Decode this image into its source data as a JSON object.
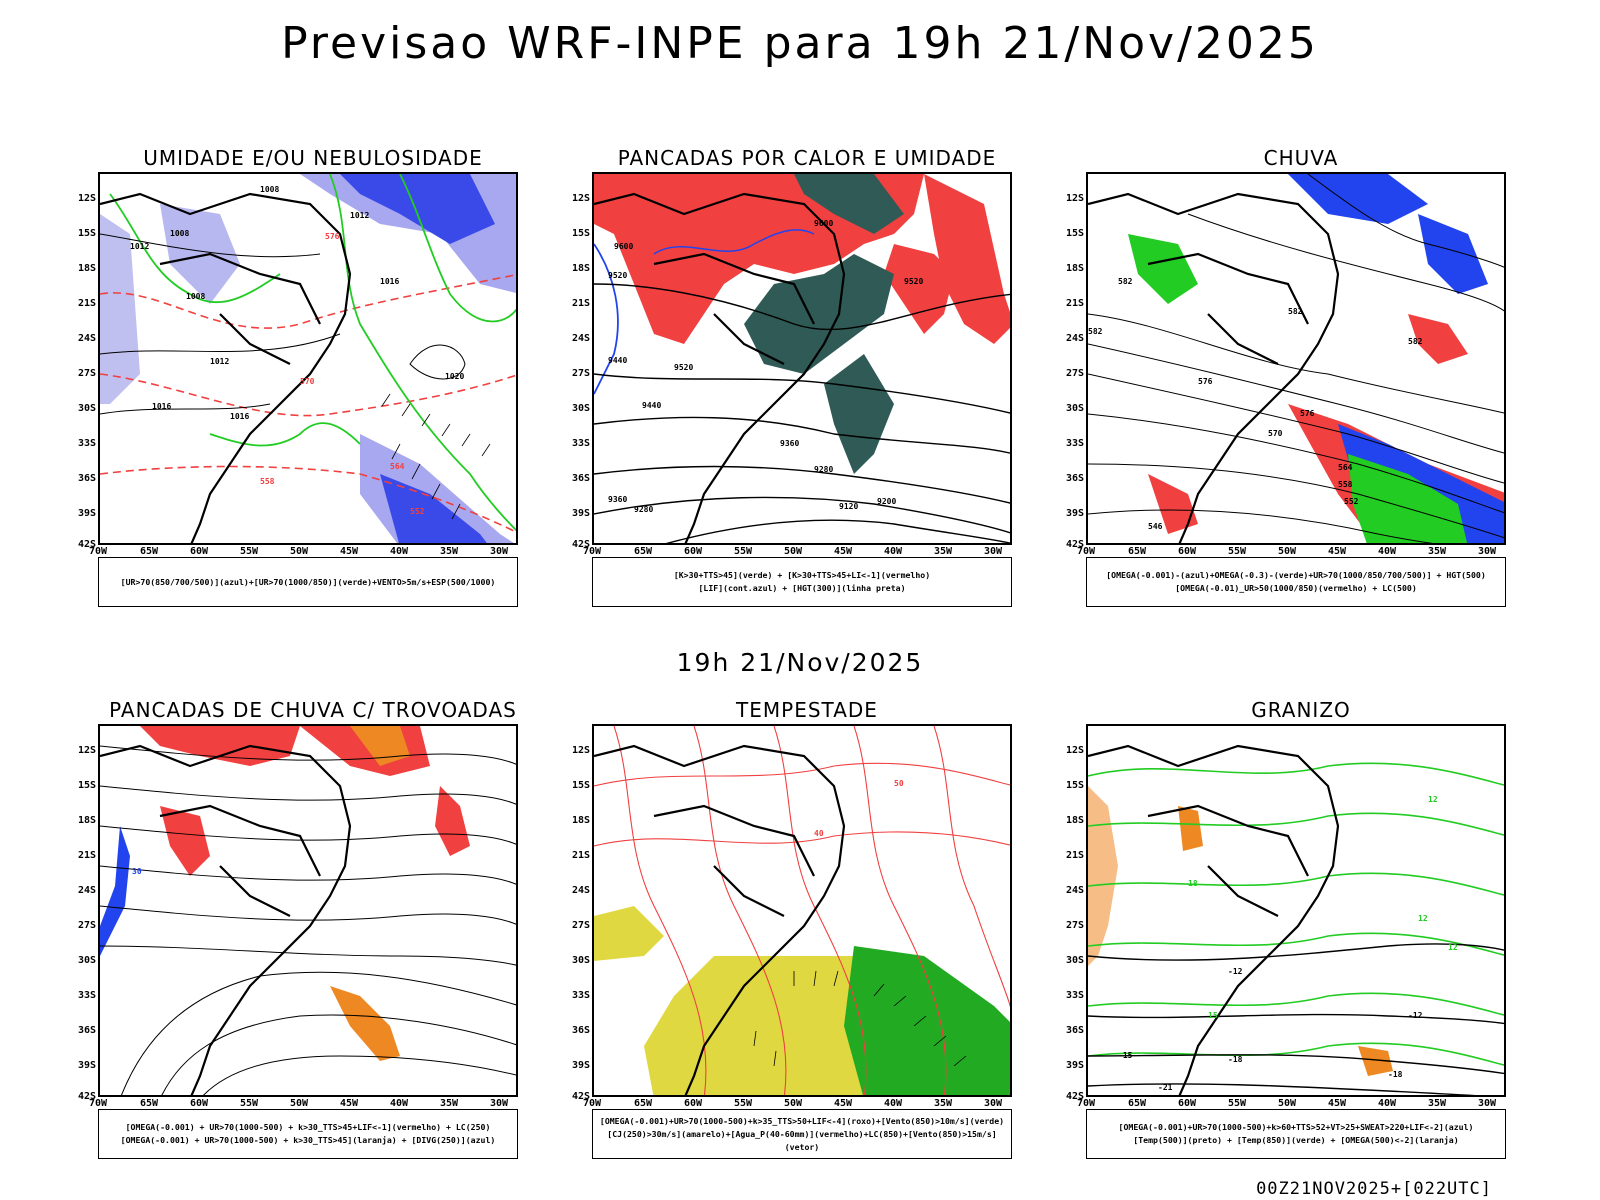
{
  "header": {
    "title": "Previsao WRF-INPE  para 19h 21/Nov/2025",
    "mid_title": "19h 21/Nov/2025",
    "footer": "00Z21NOV2025+[022UTC]"
  },
  "axes": {
    "lat_labels": [
      "12S",
      "15S",
      "18S",
      "21S",
      "24S",
      "27S",
      "30S",
      "33S",
      "36S",
      "39S",
      "42S"
    ],
    "lon_labels": [
      "70W",
      "65W",
      "60W",
      "55W",
      "50W",
      "45W",
      "40W",
      "35W",
      "30W"
    ]
  },
  "colors": {
    "red": "#f04040",
    "green": "#22cc22",
    "blue": "#2244ee",
    "lightblue": "#a8a8f0",
    "teal": "#2f5a55",
    "orange": "#ee8822",
    "yellow": "#e0d840",
    "black": "#000000"
  },
  "panels": [
    {
      "id": "umidade",
      "title": "UMIDADE E/OU NEBULOSIDADE",
      "legend": [
        "[UR>70(850/700/500)](azul)+[UR>70(1000/850)](verde)+VENTO>5m/s+ESP(500/1000)"
      ],
      "contour_labels": [
        "1008",
        "1008",
        "1012",
        "1012",
        "1008",
        "1012",
        "1016",
        "1016",
        "1020",
        "1016",
        "576",
        "570",
        "564",
        "558",
        "552"
      ]
    },
    {
      "id": "pancadas_calor",
      "title": "PANCADAS POR CALOR E UMIDADE",
      "legend": [
        "[K>30+TTS>45](verde) + [K>30+TTS>45+LI<-1](vermelho)",
        "[LIF](cont.azul) + [HGT(300)](linha preta)"
      ],
      "contour_labels": [
        "9600",
        "9600",
        "9520",
        "9440",
        "9520",
        "9440",
        "9360",
        "9280",
        "9200",
        "9120",
        "9360",
        "9280",
        "9520"
      ]
    },
    {
      "id": "chuva",
      "title": "CHUVA",
      "legend": [
        "[OMEGA(-0.001)-(azul)+OMEGA(-0.3)-(verde)+UR>70(1000/850/700/500)] + HGT(500)",
        "[OMEGA(-0.01)_UR>50(1000/850)(vermelho) + LC(500)"
      ],
      "contour_labels": [
        "582",
        "582",
        "582",
        "576",
        "576",
        "570",
        "564",
        "558",
        "552",
        "546",
        "582"
      ]
    },
    {
      "id": "pancadas_trovoadas",
      "title": "PANCADAS DE CHUVA C/ TROVOADAS",
      "legend": [
        "[OMEGA(-0.001) + UR>70(1000-500) + k>30_TTS>45+LIF<-1](vermelho) + LC(250)",
        "[OMEGA(-0.001) + UR>70(1000-500) + k>30_TTS>45](laranja) + [DIVG(250)](azul)"
      ],
      "contour_labels": [
        "30"
      ]
    },
    {
      "id": "tempestade",
      "title": "TEMPESTADE",
      "legend": [
        "[OMEGA(-0.001)+UR>70(1000-500)+k>35_TTS>50+LIF<-4](roxo)+[Vento(850)>10m/s](verde)",
        "[CJ(250)>30m/s](amarelo)+[Agua_P(40-60mm)](vermelho)+LC(850)+[Vento(850)>15m/s](vetor)"
      ],
      "contour_labels": [
        "50",
        "40"
      ]
    },
    {
      "id": "granizo",
      "title": "GRANIZO",
      "legend": [
        "[OMEGA(-0.001)+UR>70(1000-500)+k>60+TTS>52+VT>25+SWEAT>220+LIF<-2](azul)",
        "[Temp(500)](preto) + [Temp(850)](verde) + [OMEGA(500)<-2](laranja)"
      ],
      "contour_labels": [
        "-12",
        "-15",
        "-18",
        "-18",
        "-21",
        "12",
        "15",
        "18",
        "12",
        "12",
        "-12"
      ]
    }
  ]
}
